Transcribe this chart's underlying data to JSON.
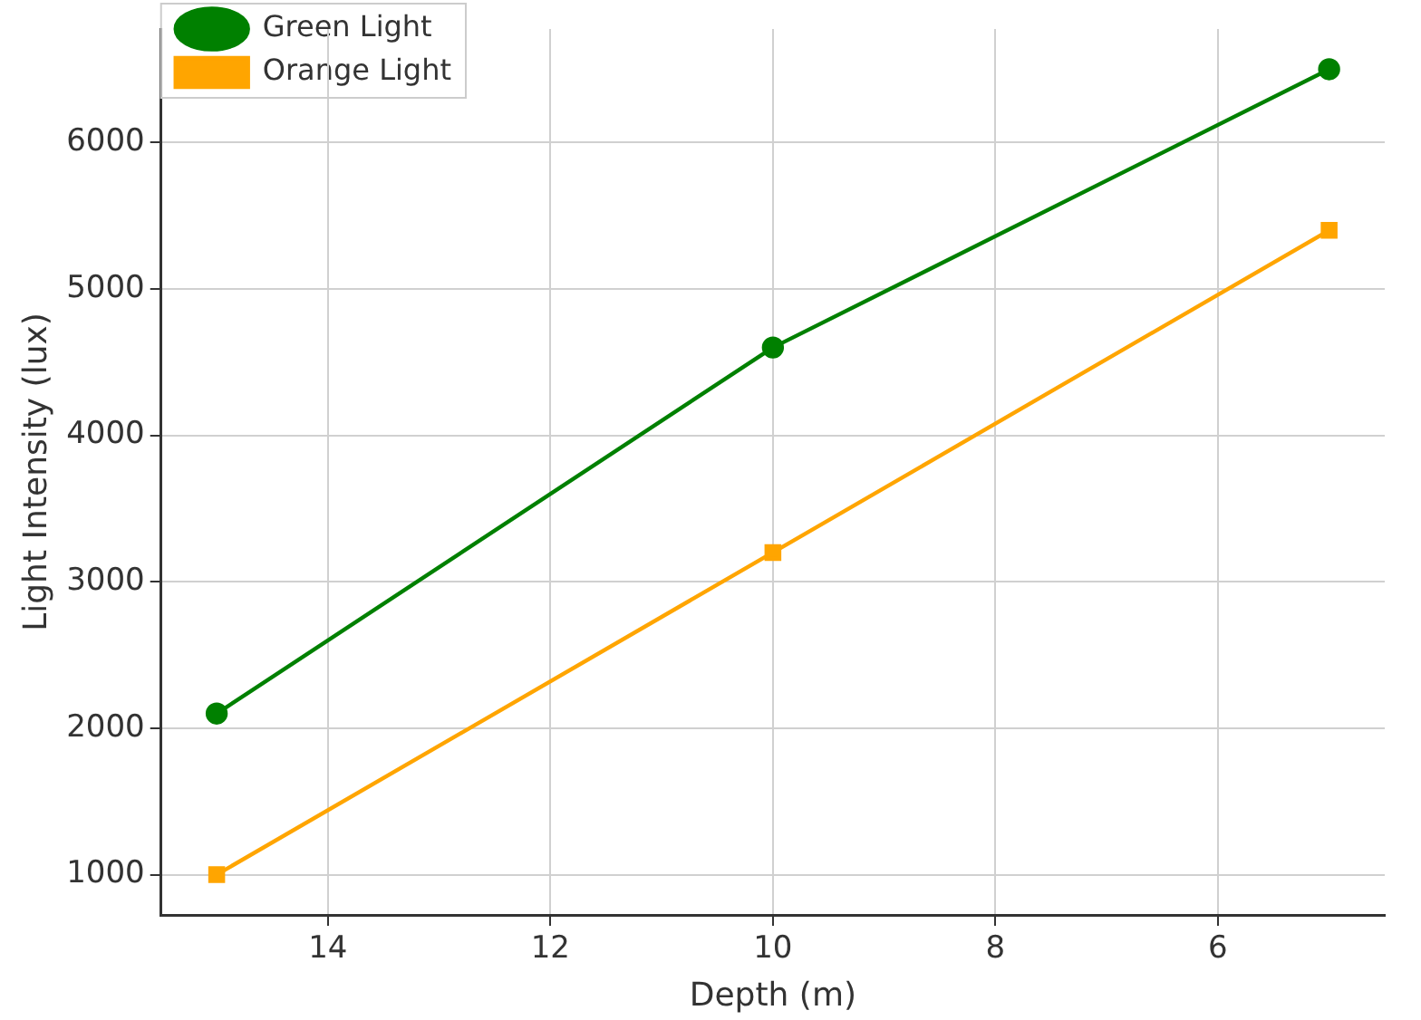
{
  "chart_data": {
    "type": "line",
    "xlabel": "Depth (m)",
    "ylabel": "Light Intensity (lux)",
    "x": [
      15,
      10,
      5
    ],
    "series": [
      {
        "name": "Green Light",
        "color": "#008000",
        "values": [
          2100,
          4600,
          6500
        ],
        "marker": "circle"
      },
      {
        "name": "Orange Light",
        "color": "#ffa500",
        "values": [
          1000,
          3200,
          5400
        ],
        "marker": "square"
      }
    ],
    "xlim": [
      15.5,
      4.5
    ],
    "xticks": [
      14,
      12,
      10,
      8,
      6
    ],
    "ylim": [
      725,
      6775
    ],
    "yticks": [
      1000,
      2000,
      3000,
      4000,
      5000,
      6000
    ],
    "grid": true,
    "legend": "top left",
    "line_style": "solid"
  }
}
